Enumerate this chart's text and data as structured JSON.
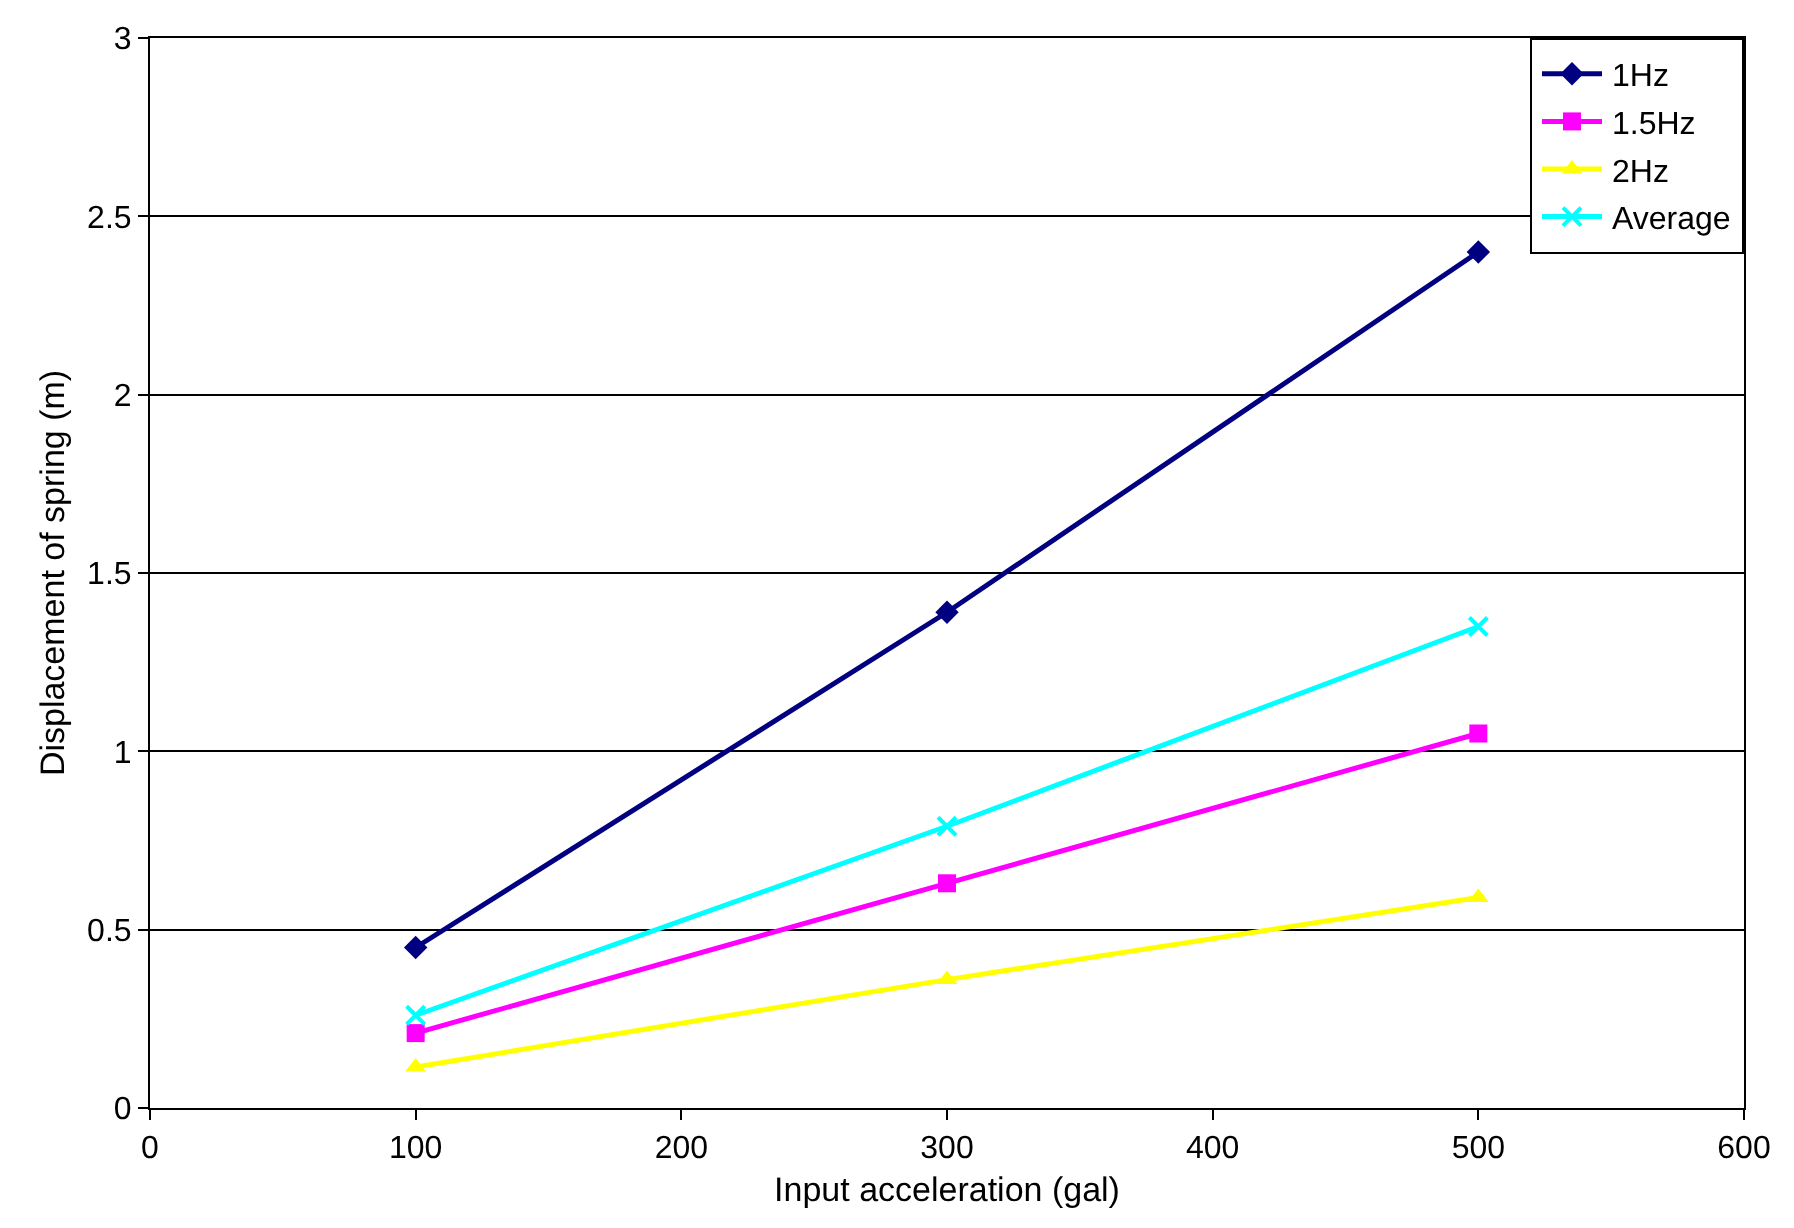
{
  "chart_data": {
    "type": "line",
    "xlabel": "Input acceleration (gal)",
    "ylabel": "Displacement of spring (m)",
    "x": [
      100,
      300,
      500
    ],
    "series": [
      {
        "name": "1Hz",
        "color": "#000080",
        "marker": "diamond",
        "values": [
          0.45,
          1.39,
          2.4
        ]
      },
      {
        "name": "1.5Hz",
        "color": "#ff00ff",
        "marker": "square",
        "values": [
          0.21,
          0.63,
          1.05
        ]
      },
      {
        "name": "2Hz",
        "color": "#ffff00",
        "marker": "triangle",
        "values": [
          0.115,
          0.36,
          0.59
        ]
      },
      {
        "name": "Average",
        "color": "#00ffff",
        "marker": "cross",
        "values": [
          0.26,
          0.79,
          1.35
        ]
      }
    ],
    "xlim": [
      0,
      600
    ],
    "xticks": [
      0,
      100,
      200,
      300,
      400,
      500,
      600
    ],
    "ylim": [
      0,
      3
    ],
    "yticks": [
      0,
      0.5,
      1,
      1.5,
      2,
      2.5,
      3
    ],
    "grid": "y",
    "legend": "top right",
    "line_style": "solid"
  }
}
